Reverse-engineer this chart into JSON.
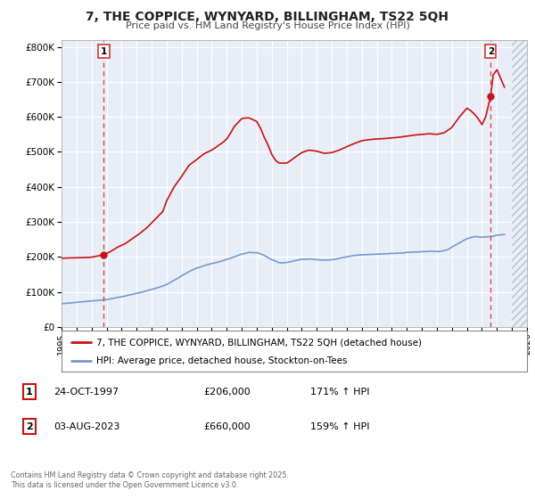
{
  "title": "7, THE COPPICE, WYNYARD, BILLINGHAM, TS22 5QH",
  "subtitle": "Price paid vs. HM Land Registry's House Price Index (HPI)",
  "background_color": "#ffffff",
  "plot_bg_color": "#e8eef8",
  "grid_color": "#ffffff",
  "hpi_line_color": "#7799cc",
  "price_line_color": "#cc1111",
  "vline_color": "#dd3333",
  "marker1_date_x": 1997.82,
  "marker1_y": 206000,
  "marker2_date_x": 2023.58,
  "marker2_y": 660000,
  "ylim": [
    0,
    820000
  ],
  "xlim": [
    1995,
    2026
  ],
  "yticks": [
    0,
    100000,
    200000,
    300000,
    400000,
    500000,
    600000,
    700000,
    800000
  ],
  "xticks": [
    1995,
    1996,
    1997,
    1998,
    1999,
    2000,
    2001,
    2002,
    2003,
    2004,
    2005,
    2006,
    2007,
    2008,
    2009,
    2010,
    2011,
    2012,
    2013,
    2014,
    2015,
    2016,
    2017,
    2018,
    2019,
    2020,
    2021,
    2022,
    2023,
    2024,
    2025,
    2026
  ],
  "legend_label_price": "7, THE COPPICE, WYNYARD, BILLINGHAM, TS22 5QH (detached house)",
  "legend_label_hpi": "HPI: Average price, detached house, Stockton-on-Tees",
  "table_row1": [
    "1",
    "24-OCT-1997",
    "£206,000",
    "171% ↑ HPI"
  ],
  "table_row2": [
    "2",
    "03-AUG-2023",
    "£660,000",
    "159% ↑ HPI"
  ],
  "footer": "Contains HM Land Registry data © Crown copyright and database right 2025.\nThis data is licensed under the Open Government Licence v3.0.",
  "hpi_data_x": [
    1995.0,
    1995.25,
    1995.5,
    1995.75,
    1996.0,
    1996.25,
    1996.5,
    1996.75,
    1997.0,
    1997.25,
    1997.5,
    1997.75,
    1998.0,
    1998.25,
    1998.5,
    1998.75,
    1999.0,
    1999.25,
    1999.5,
    1999.75,
    2000.0,
    2000.25,
    2000.5,
    2000.75,
    2001.0,
    2001.25,
    2001.5,
    2001.75,
    2002.0,
    2002.25,
    2002.5,
    2002.75,
    2003.0,
    2003.25,
    2003.5,
    2003.75,
    2004.0,
    2004.25,
    2004.5,
    2004.75,
    2005.0,
    2005.25,
    2005.5,
    2005.75,
    2006.0,
    2006.25,
    2006.5,
    2006.75,
    2007.0,
    2007.25,
    2007.5,
    2007.75,
    2008.0,
    2008.25,
    2008.5,
    2008.75,
    2009.0,
    2009.25,
    2009.5,
    2009.75,
    2010.0,
    2010.25,
    2010.5,
    2010.75,
    2011.0,
    2011.25,
    2011.5,
    2011.75,
    2012.0,
    2012.25,
    2012.5,
    2012.75,
    2013.0,
    2013.25,
    2013.5,
    2013.75,
    2014.0,
    2014.25,
    2014.5,
    2014.75,
    2015.0,
    2015.25,
    2015.5,
    2015.75,
    2016.0,
    2016.25,
    2016.5,
    2016.75,
    2017.0,
    2017.25,
    2017.5,
    2017.75,
    2018.0,
    2018.25,
    2018.5,
    2018.75,
    2019.0,
    2019.25,
    2019.5,
    2019.75,
    2020.0,
    2020.25,
    2020.5,
    2020.75,
    2021.0,
    2021.25,
    2021.5,
    2021.75,
    2022.0,
    2022.25,
    2022.5,
    2022.75,
    2023.0,
    2023.25,
    2023.5,
    2023.75,
    2024.0,
    2024.25,
    2024.5
  ],
  "hpi_data_y": [
    66000,
    67000,
    68000,
    69000,
    70000,
    71000,
    72000,
    73000,
    74000,
    75000,
    76000,
    77000,
    78000,
    80000,
    82000,
    84000,
    86000,
    88000,
    91000,
    93000,
    96000,
    98000,
    101000,
    104000,
    107000,
    110000,
    113000,
    117000,
    121000,
    127000,
    133000,
    139000,
    146000,
    152000,
    158000,
    163000,
    168000,
    171000,
    175000,
    178000,
    181000,
    183000,
    186000,
    189000,
    193000,
    196000,
    200000,
    204000,
    208000,
    210000,
    213000,
    212000,
    212000,
    209000,
    204000,
    198000,
    192000,
    188000,
    183000,
    183000,
    184000,
    186000,
    189000,
    191000,
    193000,
    193000,
    194000,
    193000,
    192000,
    191000,
    191000,
    191000,
    192000,
    193000,
    196000,
    198000,
    200000,
    202000,
    204000,
    205000,
    206000,
    206000,
    207000,
    207000,
    208000,
    208000,
    209000,
    209000,
    210000,
    210000,
    211000,
    211000,
    213000,
    213000,
    214000,
    214000,
    215000,
    215000,
    216000,
    216000,
    215000,
    216000,
    218000,
    221000,
    228000,
    234000,
    240000,
    246000,
    252000,
    255000,
    258000,
    257000,
    256000,
    257000,
    258000,
    259000,
    262000,
    263000,
    264000
  ],
  "price_data_x": [
    1995.0,
    1995.5,
    1996.0,
    1996.5,
    1997.0,
    1997.82,
    1998.25,
    1998.75,
    1999.25,
    1999.75,
    2000.25,
    2000.75,
    2001.25,
    2001.75,
    2002.0,
    2002.5,
    2003.0,
    2003.5,
    2004.0,
    2004.5,
    2005.0,
    2005.25,
    2005.5,
    2005.75,
    2006.0,
    2006.25,
    2006.5,
    2007.0,
    2007.25,
    2007.5,
    2008.0,
    2008.25,
    2008.5,
    2008.75,
    2009.0,
    2009.25,
    2009.5,
    2010.0,
    2010.25,
    2010.5,
    2011.0,
    2011.25,
    2011.5,
    2012.0,
    2012.5,
    2013.0,
    2013.5,
    2014.0,
    2014.5,
    2015.0,
    2015.5,
    2016.0,
    2016.5,
    2017.0,
    2017.5,
    2018.0,
    2018.5,
    2019.0,
    2019.5,
    2020.0,
    2020.5,
    2021.0,
    2021.25,
    2021.5,
    2022.0,
    2022.25,
    2022.5,
    2022.75,
    2023.0,
    2023.25,
    2023.58,
    2023.75,
    2024.0,
    2024.25,
    2024.5
  ],
  "price_data_y": [
    196000,
    197000,
    197500,
    198000,
    199000,
    206000,
    215000,
    228000,
    238000,
    253000,
    268000,
    286000,
    308000,
    330000,
    360000,
    400000,
    430000,
    462000,
    478000,
    495000,
    505000,
    512000,
    520000,
    527000,
    537000,
    553000,
    572000,
    595000,
    597000,
    597000,
    587000,
    568000,
    542000,
    520000,
    493000,
    476000,
    468000,
    468000,
    475000,
    483000,
    498000,
    502000,
    505000,
    502000,
    496000,
    498000,
    505000,
    515000,
    524000,
    532000,
    535000,
    537000,
    538000,
    540000,
    542000,
    545000,
    548000,
    550000,
    552000,
    550000,
    555000,
    570000,
    585000,
    600000,
    625000,
    618000,
    608000,
    595000,
    578000,
    600000,
    660000,
    720000,
    735000,
    710000,
    685000
  ]
}
